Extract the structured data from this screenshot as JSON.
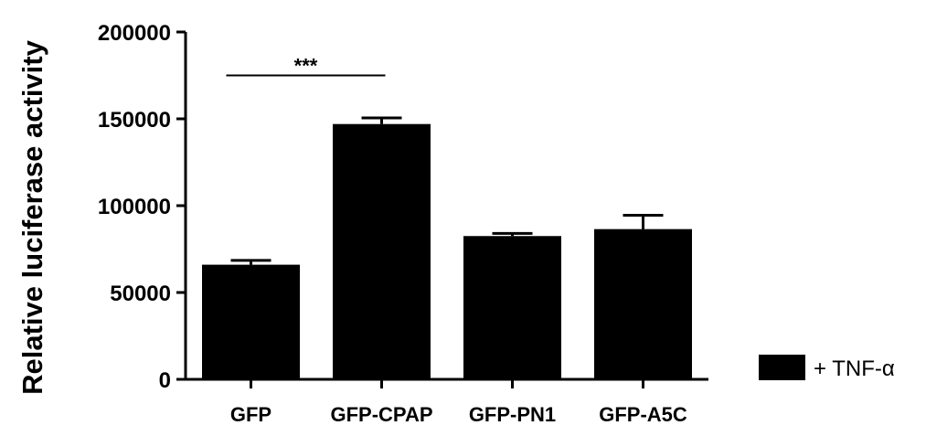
{
  "chart_data": {
    "type": "bar",
    "title": "",
    "xlabel": "",
    "ylabel": "Relative luciferase activity",
    "categories": [
      "GFP",
      "GFP-CPAP",
      "GFP-PN1",
      "GFP-A5C"
    ],
    "series": [
      {
        "name": "+ TNF-α",
        "values": [
          66000,
          147000,
          82500,
          86500
        ],
        "error_upper": [
          68500,
          150500,
          84000,
          94500
        ]
      }
    ],
    "ylim": [
      0,
      200000
    ],
    "yticks": [
      0,
      50000,
      100000,
      150000,
      200000
    ],
    "ytick_labels": [
      "0",
      "50000",
      "100000",
      "150000",
      "200000"
    ],
    "grid": false,
    "legend": "right",
    "bar_color": "#000000",
    "annotations": [
      {
        "text": "***",
        "from_category": 0,
        "to_category": 1,
        "level": 175000
      }
    ]
  }
}
